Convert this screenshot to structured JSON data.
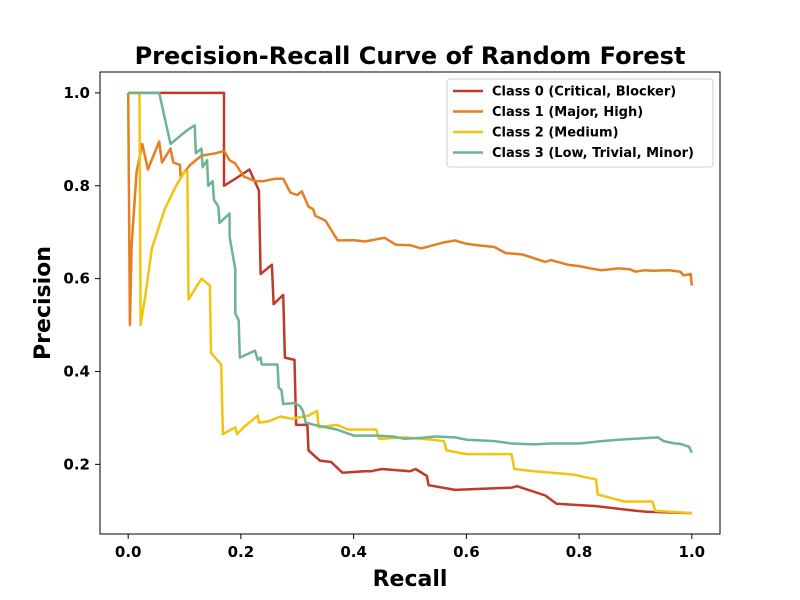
{
  "chart_data": {
    "type": "line",
    "title": "Precision-Recall Curve of Random Forest",
    "xlabel": "Recall",
    "ylabel": "Precision",
    "xlim": [
      -0.05,
      1.05
    ],
    "ylim": [
      0.05,
      1.045
    ],
    "xticks": [
      0.0,
      0.2,
      0.4,
      0.6,
      0.8,
      1.0
    ],
    "xtick_labels": [
      "0.0",
      "0.2",
      "0.4",
      "0.6",
      "0.8",
      "1.0"
    ],
    "yticks": [
      0.2,
      0.4,
      0.6,
      0.8,
      1.0
    ],
    "ytick_labels": [
      "0.2",
      "0.4",
      "0.6",
      "0.8",
      "1.0"
    ],
    "grid": false,
    "legend_position": "top-right",
    "series": [
      {
        "name": "Class 0 (Critical, Blocker)",
        "color": "#c0392b",
        "points": [
          [
            0.0,
            1.0
          ],
          [
            0.17,
            1.0
          ],
          [
            0.17,
            0.8
          ],
          [
            0.19,
            0.815
          ],
          [
            0.215,
            0.835
          ],
          [
            0.232,
            0.79
          ],
          [
            0.235,
            0.61
          ],
          [
            0.255,
            0.63
          ],
          [
            0.258,
            0.545
          ],
          [
            0.275,
            0.565
          ],
          [
            0.278,
            0.43
          ],
          [
            0.295,
            0.425
          ],
          [
            0.298,
            0.285
          ],
          [
            0.318,
            0.285
          ],
          [
            0.32,
            0.23
          ],
          [
            0.34,
            0.208
          ],
          [
            0.36,
            0.205
          ],
          [
            0.38,
            0.182
          ],
          [
            0.42,
            0.185
          ],
          [
            0.43,
            0.185
          ],
          [
            0.45,
            0.19
          ],
          [
            0.5,
            0.185
          ],
          [
            0.51,
            0.19
          ],
          [
            0.53,
            0.175
          ],
          [
            0.533,
            0.155
          ],
          [
            0.58,
            0.145
          ],
          [
            0.64,
            0.148
          ],
          [
            0.68,
            0.15
          ],
          [
            0.69,
            0.153
          ],
          [
            0.74,
            0.133
          ],
          [
            0.76,
            0.115
          ],
          [
            0.83,
            0.11
          ],
          [
            0.9,
            0.1
          ],
          [
            0.92,
            0.098
          ],
          [
            1.0,
            0.095
          ]
        ]
      },
      {
        "name": "Class 1 (Major, High)",
        "color": "#e67e22",
        "points": [
          [
            0.0,
            1.0
          ],
          [
            0.003,
            0.5
          ],
          [
            0.006,
            0.67
          ],
          [
            0.015,
            0.83
          ],
          [
            0.025,
            0.89
          ],
          [
            0.035,
            0.835
          ],
          [
            0.045,
            0.865
          ],
          [
            0.055,
            0.895
          ],
          [
            0.06,
            0.85
          ],
          [
            0.075,
            0.88
          ],
          [
            0.08,
            0.85
          ],
          [
            0.092,
            0.845
          ],
          [
            0.093,
            0.82
          ],
          [
            0.11,
            0.845
          ],
          [
            0.13,
            0.865
          ],
          [
            0.155,
            0.87
          ],
          [
            0.17,
            0.875
          ],
          [
            0.18,
            0.855
          ],
          [
            0.19,
            0.848
          ],
          [
            0.205,
            0.82
          ],
          [
            0.225,
            0.81
          ],
          [
            0.24,
            0.81
          ],
          [
            0.26,
            0.815
          ],
          [
            0.275,
            0.815
          ],
          [
            0.288,
            0.785
          ],
          [
            0.3,
            0.78
          ],
          [
            0.308,
            0.788
          ],
          [
            0.32,
            0.755
          ],
          [
            0.328,
            0.75
          ],
          [
            0.332,
            0.735
          ],
          [
            0.35,
            0.725
          ],
          [
            0.365,
            0.695
          ],
          [
            0.372,
            0.682
          ],
          [
            0.4,
            0.683
          ],
          [
            0.42,
            0.68
          ],
          [
            0.455,
            0.688
          ],
          [
            0.475,
            0.673
          ],
          [
            0.5,
            0.672
          ],
          [
            0.52,
            0.665
          ],
          [
            0.56,
            0.678
          ],
          [
            0.58,
            0.682
          ],
          [
            0.6,
            0.675
          ],
          [
            0.62,
            0.672
          ],
          [
            0.65,
            0.668
          ],
          [
            0.67,
            0.655
          ],
          [
            0.7,
            0.652
          ],
          [
            0.74,
            0.636
          ],
          [
            0.75,
            0.64
          ],
          [
            0.78,
            0.63
          ],
          [
            0.8,
            0.627
          ],
          [
            0.82,
            0.622
          ],
          [
            0.84,
            0.618
          ],
          [
            0.87,
            0.622
          ],
          [
            0.89,
            0.62
          ],
          [
            0.9,
            0.615
          ],
          [
            0.915,
            0.618
          ],
          [
            0.93,
            0.617
          ],
          [
            0.96,
            0.618
          ],
          [
            0.98,
            0.615
          ],
          [
            0.985,
            0.607
          ],
          [
            0.998,
            0.61
          ],
          [
            1.0,
            0.585
          ]
        ]
      },
      {
        "name": "Class 2 (Medium)",
        "color": "#f1c40f",
        "points": [
          [
            0.0,
            1.0
          ],
          [
            0.02,
            1.0
          ],
          [
            0.022,
            0.5
          ],
          [
            0.03,
            0.56
          ],
          [
            0.042,
            0.665
          ],
          [
            0.065,
            0.75
          ],
          [
            0.085,
            0.8
          ],
          [
            0.1,
            0.83
          ],
          [
            0.105,
            0.83
          ],
          [
            0.107,
            0.555
          ],
          [
            0.13,
            0.6
          ],
          [
            0.145,
            0.585
          ],
          [
            0.147,
            0.44
          ],
          [
            0.165,
            0.415
          ],
          [
            0.168,
            0.265
          ],
          [
            0.18,
            0.273
          ],
          [
            0.19,
            0.28
          ],
          [
            0.193,
            0.265
          ],
          [
            0.205,
            0.28
          ],
          [
            0.23,
            0.305
          ],
          [
            0.232,
            0.29
          ],
          [
            0.25,
            0.293
          ],
          [
            0.27,
            0.303
          ],
          [
            0.29,
            0.298
          ],
          [
            0.32,
            0.305
          ],
          [
            0.335,
            0.315
          ],
          [
            0.338,
            0.28
          ],
          [
            0.37,
            0.285
          ],
          [
            0.39,
            0.275
          ],
          [
            0.44,
            0.275
          ],
          [
            0.445,
            0.255
          ],
          [
            0.49,
            0.258
          ],
          [
            0.54,
            0.253
          ],
          [
            0.56,
            0.25
          ],
          [
            0.565,
            0.23
          ],
          [
            0.6,
            0.222
          ],
          [
            0.68,
            0.222
          ],
          [
            0.685,
            0.19
          ],
          [
            0.72,
            0.185
          ],
          [
            0.77,
            0.18
          ],
          [
            0.79,
            0.178
          ],
          [
            0.82,
            0.17
          ],
          [
            0.83,
            0.168
          ],
          [
            0.833,
            0.135
          ],
          [
            0.88,
            0.12
          ],
          [
            0.93,
            0.12
          ],
          [
            0.935,
            0.1
          ],
          [
            1.0,
            0.095
          ]
        ]
      },
      {
        "name": "Class 3 (Low, Trivial, Minor)",
        "color": "#6db395",
        "points": [
          [
            0.0,
            1.0
          ],
          [
            0.055,
            1.0
          ],
          [
            0.075,
            0.89
          ],
          [
            0.09,
            0.905
          ],
          [
            0.105,
            0.92
          ],
          [
            0.118,
            0.93
          ],
          [
            0.12,
            0.87
          ],
          [
            0.13,
            0.88
          ],
          [
            0.132,
            0.84
          ],
          [
            0.14,
            0.855
          ],
          [
            0.142,
            0.8
          ],
          [
            0.15,
            0.81
          ],
          [
            0.152,
            0.77
          ],
          [
            0.16,
            0.755
          ],
          [
            0.162,
            0.72
          ],
          [
            0.18,
            0.74
          ],
          [
            0.18,
            0.69
          ],
          [
            0.19,
            0.62
          ],
          [
            0.19,
            0.525
          ],
          [
            0.196,
            0.51
          ],
          [
            0.198,
            0.43
          ],
          [
            0.225,
            0.445
          ],
          [
            0.23,
            0.425
          ],
          [
            0.235,
            0.43
          ],
          [
            0.237,
            0.415
          ],
          [
            0.265,
            0.415
          ],
          [
            0.267,
            0.365
          ],
          [
            0.272,
            0.36
          ],
          [
            0.275,
            0.33
          ],
          [
            0.295,
            0.332
          ],
          [
            0.305,
            0.325
          ],
          [
            0.31,
            0.315
          ],
          [
            0.315,
            0.29
          ],
          [
            0.33,
            0.285
          ],
          [
            0.35,
            0.28
          ],
          [
            0.37,
            0.275
          ],
          [
            0.4,
            0.262
          ],
          [
            0.44,
            0.262
          ],
          [
            0.47,
            0.26
          ],
          [
            0.49,
            0.255
          ],
          [
            0.52,
            0.257
          ],
          [
            0.545,
            0.26
          ],
          [
            0.58,
            0.258
          ],
          [
            0.6,
            0.253
          ],
          [
            0.65,
            0.25
          ],
          [
            0.68,
            0.245
          ],
          [
            0.72,
            0.243
          ],
          [
            0.75,
            0.245
          ],
          [
            0.8,
            0.245
          ],
          [
            0.84,
            0.25
          ],
          [
            0.87,
            0.253
          ],
          [
            0.94,
            0.258
          ],
          [
            0.95,
            0.25
          ],
          [
            0.97,
            0.245
          ],
          [
            0.98,
            0.244
          ],
          [
            0.99,
            0.24
          ],
          [
            0.995,
            0.238
          ],
          [
            1.0,
            0.225
          ]
        ]
      }
    ]
  }
}
